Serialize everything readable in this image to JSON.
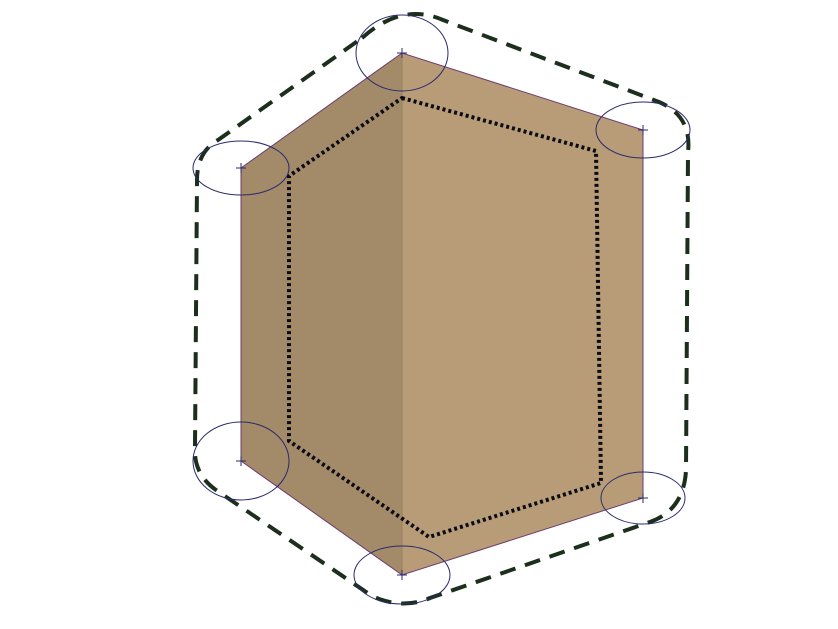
{
  "scene": {
    "background": "#ffffff",
    "box": {
      "left_face_color": "#a38a69",
      "right_face_color": "#b79c77",
      "edge_color": "#6e3c6e"
    },
    "outer_offset_outline": {
      "style": "dashed",
      "color": "#1c2e1c"
    },
    "inner_offset_outline": {
      "style": "dotted",
      "color": "#0b0b14"
    },
    "vertex_marker": {
      "shape": "ellipse with cross",
      "color": "#2a2a6e",
      "count": 6
    }
  }
}
